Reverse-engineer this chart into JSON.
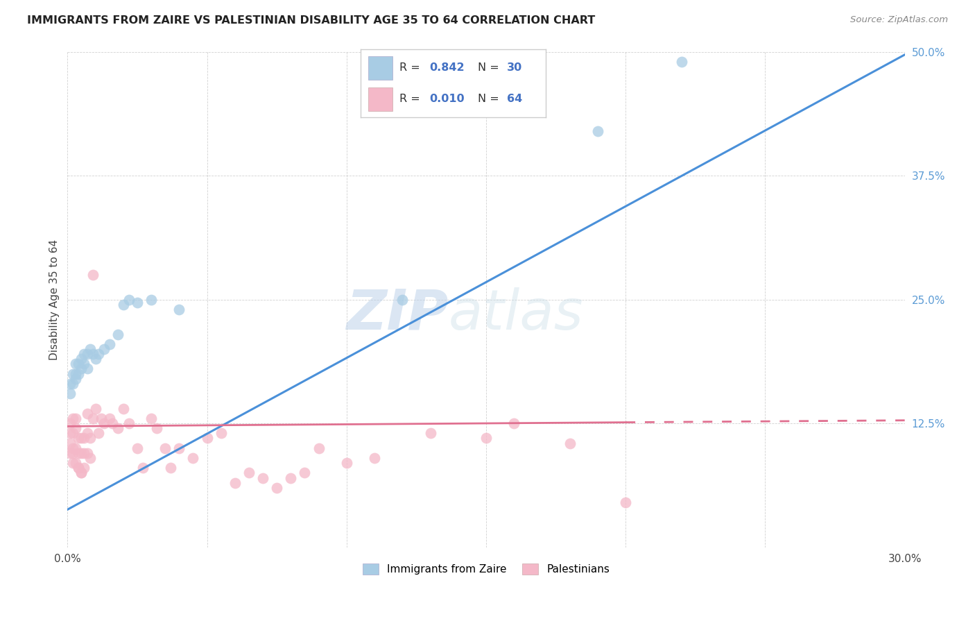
{
  "title": "IMMIGRANTS FROM ZAIRE VS PALESTINIAN DISABILITY AGE 35 TO 64 CORRELATION CHART",
  "source": "Source: ZipAtlas.com",
  "ylabel": "Disability Age 35 to 64",
  "xlim": [
    0.0,
    0.3
  ],
  "ylim": [
    0.0,
    0.5
  ],
  "blue_R": 0.842,
  "blue_N": 30,
  "pink_R": 0.01,
  "pink_N": 64,
  "blue_color": "#a8cce4",
  "pink_color": "#f4b8c8",
  "blue_line_color": "#4a90d9",
  "pink_line_color": "#e07090",
  "watermark_zip": "ZIP",
  "watermark_atlas": "atlas",
  "legend_label_blue": "Immigrants from Zaire",
  "legend_label_pink": "Palestinians",
  "blue_line_x": [
    0.0,
    0.3
  ],
  "blue_line_y": [
    0.038,
    0.497
  ],
  "pink_line_x": [
    0.0,
    0.3
  ],
  "pink_line_y": [
    0.122,
    0.128
  ],
  "blue_x": [
    0.001,
    0.001,
    0.002,
    0.002,
    0.003,
    0.003,
    0.003,
    0.004,
    0.004,
    0.005,
    0.005,
    0.006,
    0.006,
    0.007,
    0.007,
    0.008,
    0.009,
    0.01,
    0.011,
    0.013,
    0.015,
    0.018,
    0.02,
    0.022,
    0.025,
    0.03,
    0.04,
    0.12,
    0.19,
    0.22
  ],
  "blue_y": [
    0.155,
    0.165,
    0.165,
    0.175,
    0.17,
    0.175,
    0.185,
    0.175,
    0.185,
    0.18,
    0.19,
    0.185,
    0.195,
    0.18,
    0.195,
    0.2,
    0.195,
    0.19,
    0.195,
    0.2,
    0.205,
    0.215,
    0.245,
    0.25,
    0.247,
    0.25,
    0.24,
    0.25,
    0.42,
    0.49
  ],
  "pink_x": [
    0.001,
    0.001,
    0.001,
    0.001,
    0.002,
    0.002,
    0.002,
    0.002,
    0.002,
    0.003,
    0.003,
    0.003,
    0.003,
    0.004,
    0.004,
    0.004,
    0.004,
    0.005,
    0.005,
    0.005,
    0.005,
    0.006,
    0.006,
    0.006,
    0.007,
    0.007,
    0.007,
    0.008,
    0.008,
    0.009,
    0.009,
    0.01,
    0.011,
    0.012,
    0.013,
    0.015,
    0.016,
    0.018,
    0.02,
    0.022,
    0.025,
    0.027,
    0.03,
    0.032,
    0.035,
    0.037,
    0.04,
    0.045,
    0.05,
    0.055,
    0.06,
    0.065,
    0.07,
    0.075,
    0.08,
    0.085,
    0.09,
    0.1,
    0.11,
    0.13,
    0.15,
    0.16,
    0.18,
    0.2
  ],
  "pink_y": [
    0.105,
    0.115,
    0.125,
    0.095,
    0.085,
    0.1,
    0.115,
    0.13,
    0.095,
    0.085,
    0.1,
    0.12,
    0.13,
    0.08,
    0.095,
    0.11,
    0.08,
    0.075,
    0.095,
    0.11,
    0.075,
    0.08,
    0.095,
    0.11,
    0.095,
    0.115,
    0.135,
    0.09,
    0.11,
    0.275,
    0.13,
    0.14,
    0.115,
    0.13,
    0.125,
    0.13,
    0.125,
    0.12,
    0.14,
    0.125,
    0.1,
    0.08,
    0.13,
    0.12,
    0.1,
    0.08,
    0.1,
    0.09,
    0.11,
    0.115,
    0.065,
    0.075,
    0.07,
    0.06,
    0.07,
    0.075,
    0.1,
    0.085,
    0.09,
    0.115,
    0.11,
    0.125,
    0.105,
    0.045
  ]
}
